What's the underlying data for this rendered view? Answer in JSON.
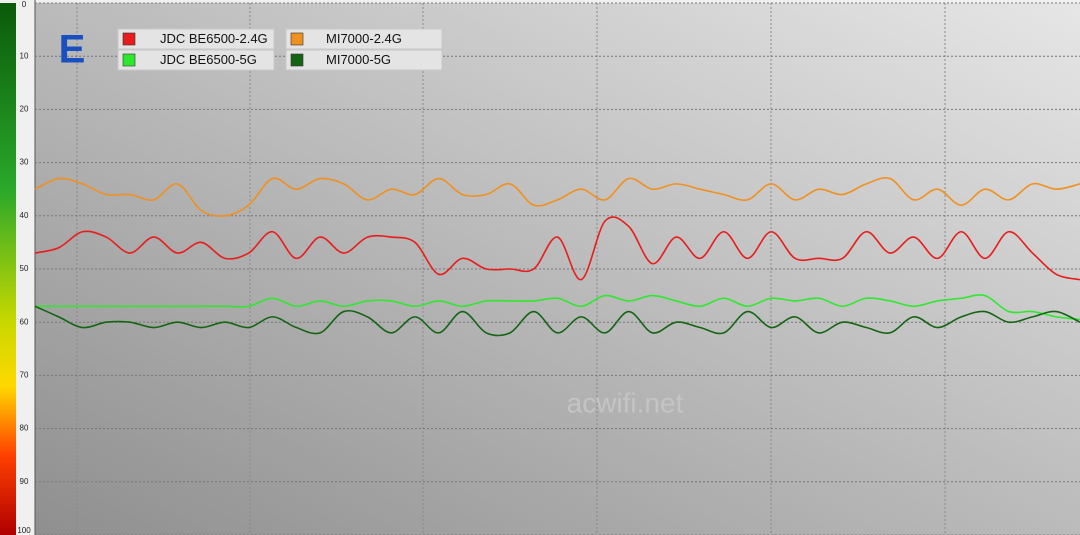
{
  "chart_data": {
    "type": "line",
    "annotations": [
      "E",
      "acwifi.net"
    ],
    "ylim": [
      0,
      100
    ],
    "inverted": true,
    "yticks": [
      0,
      10,
      20,
      30,
      40,
      50,
      60,
      70,
      80,
      90,
      100
    ],
    "grid": true,
    "legend": "top-left",
    "series": [
      {
        "name": "JDC BE6500-2.4G",
        "color": "#e81c1c",
        "values": [
          47,
          46,
          43,
          44,
          47,
          44,
          47,
          45,
          48,
          47,
          43,
          48,
          44,
          47,
          44,
          44,
          45,
          51,
          48,
          50,
          50,
          50,
          44,
          52,
          41,
          42,
          49,
          44,
          48,
          43,
          48,
          43,
          48,
          48,
          48,
          43,
          47,
          44,
          48,
          43,
          48,
          43,
          47,
          51,
          52
        ]
      },
      {
        "name": "MI7000-2.4G",
        "color": "#f0901e",
        "values": [
          35,
          33,
          34,
          36,
          36,
          37,
          34,
          39,
          40,
          38,
          33,
          35,
          33,
          34,
          37,
          35,
          36,
          33,
          36,
          36,
          34,
          38,
          37,
          35,
          37,
          33,
          35,
          34,
          35,
          36,
          37,
          34,
          37,
          35,
          36,
          34,
          33,
          37,
          35,
          38,
          35,
          37,
          34,
          35,
          34
        ]
      },
      {
        "name": "JDC BE6500-5G",
        "color": "#2ee82e",
        "values": [
          57,
          57,
          57,
          57,
          57,
          57,
          57,
          57,
          57,
          57,
          55.5,
          57,
          56,
          57,
          56,
          56,
          57,
          56,
          57,
          56,
          56,
          56,
          55.5,
          57,
          55,
          56,
          55,
          56,
          57,
          55.5,
          57,
          55.5,
          56,
          55.5,
          57,
          55.5,
          56,
          57,
          56,
          55.5,
          55,
          58,
          58,
          59,
          59.5
        ]
      },
      {
        "name": "MI7000-5G",
        "color": "#146414",
        "values": [
          57,
          59,
          61,
          60,
          60,
          61,
          60,
          61,
          60,
          61,
          59,
          61,
          62,
          58,
          59,
          62,
          59,
          62,
          58,
          62,
          62,
          58,
          62,
          59,
          62,
          58,
          62,
          60,
          61,
          62,
          58,
          61,
          59,
          62,
          60,
          61,
          62,
          59,
          61,
          59,
          58,
          60,
          59,
          58,
          60
        ]
      }
    ]
  }
}
